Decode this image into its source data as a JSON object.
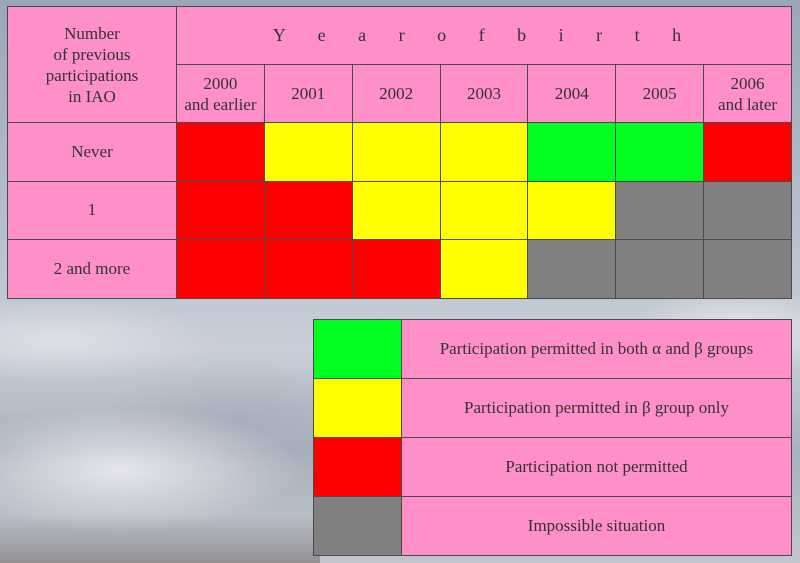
{
  "header": {
    "corner_label": [
      "Number",
      "of previous",
      "participations",
      "in IAO"
    ],
    "year_title": "Y e a r   o f   b i r t h",
    "years": [
      [
        "2000",
        "and earlier"
      ],
      [
        "2001"
      ],
      [
        "2002"
      ],
      [
        "2003"
      ],
      [
        "2004"
      ],
      [
        "2005"
      ],
      [
        "2006",
        "and later"
      ]
    ]
  },
  "colors": {
    "green": "#00ff1e",
    "yellow": "#ffff00",
    "red": "#ff0000",
    "gray": "#808080",
    "pink": "#ff8fc8"
  },
  "rows": [
    {
      "label": "Never",
      "cells": [
        "red",
        "yellow",
        "yellow",
        "yellow",
        "green",
        "green",
        "red"
      ]
    },
    {
      "label": "1",
      "cells": [
        "red",
        "red",
        "yellow",
        "yellow",
        "yellow",
        "gray",
        "gray"
      ]
    },
    {
      "label": "2 and more",
      "cells": [
        "red",
        "red",
        "red",
        "yellow",
        "gray",
        "gray",
        "gray"
      ]
    }
  ],
  "legend": [
    {
      "color": "green",
      "label": "Participation permitted in both α and β groups"
    },
    {
      "color": "yellow",
      "label": "Participation permitted in β group only"
    },
    {
      "color": "red",
      "label": "Participation not permitted"
    },
    {
      "color": "gray",
      "label": "Impossible situation"
    }
  ]
}
